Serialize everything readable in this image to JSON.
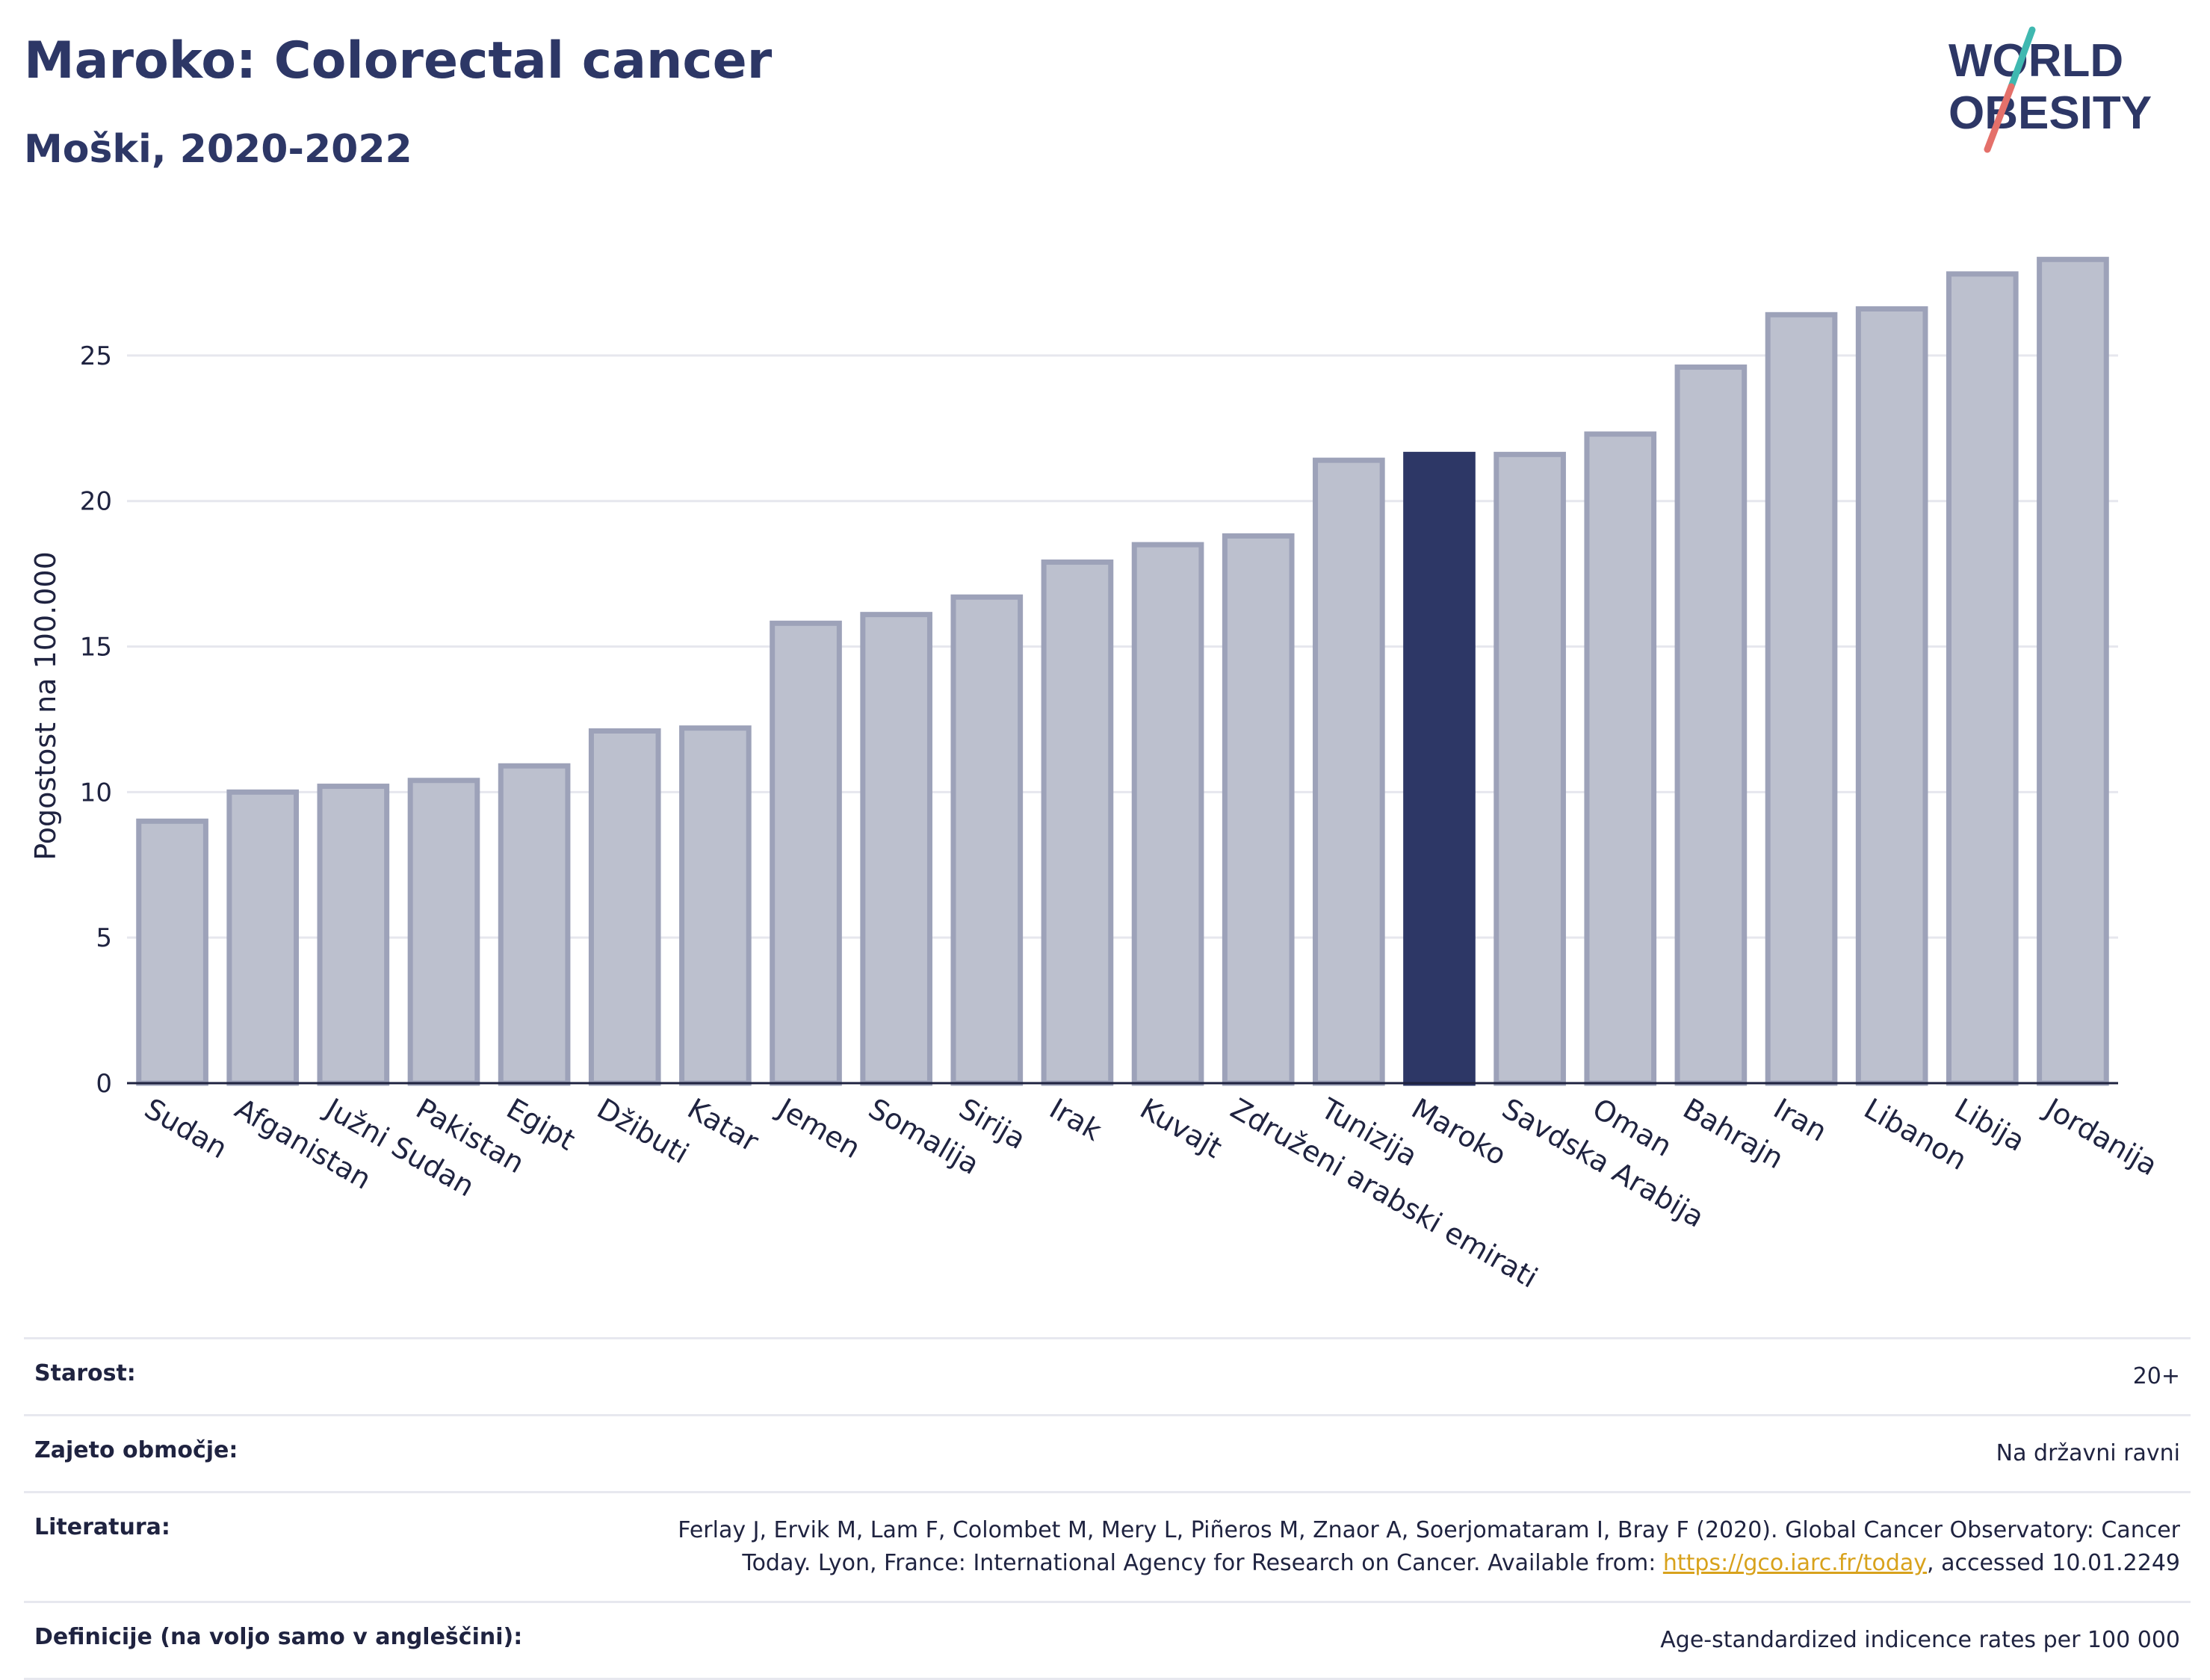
{
  "header": {
    "title": "Maroko: Colorectal cancer",
    "subtitle": "Moški, 2020-2022"
  },
  "logo": {
    "line1": "WORLD",
    "line2": "OBESITY",
    "colors": {
      "text": "#2d3766",
      "slash_teal": "#3fb8b0",
      "slash_red": "#e4706a"
    }
  },
  "chart_data": {
    "type": "bar",
    "ylabel": "Pogostost na 100.000",
    "xlabel": "",
    "ylim": [
      0,
      29
    ],
    "yticks": [
      0,
      5,
      10,
      15,
      20,
      25
    ],
    "grid": true,
    "highlight": "Maroko",
    "colors": {
      "bar": "#bcc0ce",
      "bar_border": "#9da2b9",
      "highlight": "#2d3766",
      "grid": "#e6e7ee"
    },
    "categories": [
      "Sudan",
      "Afganistan",
      "Južni Sudan",
      "Pakistan",
      "Egipt",
      "Džibuti",
      "Katar",
      "Jemen",
      "Somalija",
      "Sirija",
      "Irak",
      "Kuvajt",
      "Združeni arabski emirati",
      "Tunizija",
      "Maroko",
      "Savdska Arabija",
      "Oman",
      "Bahrajn",
      "Iran",
      "Libanon",
      "Libija",
      "Jordanija"
    ],
    "values": [
      9.0,
      10.0,
      10.2,
      10.4,
      10.9,
      12.1,
      12.2,
      15.8,
      16.1,
      16.7,
      17.9,
      18.5,
      18.8,
      21.4,
      21.6,
      21.6,
      22.3,
      24.6,
      26.4,
      26.6,
      27.8,
      28.3
    ]
  },
  "meta": {
    "rows": [
      {
        "label": "Starost:",
        "value": "20+"
      },
      {
        "label": "Zajeto območje:",
        "value": "Na državni ravni"
      },
      {
        "label": "Literatura:",
        "value_pre": "Ferlay J, Ervik M, Lam F, Colombet M, Mery L, Piñeros M, Znaor A, Soerjomataram I, Bray F (2020). Global Cancer Observatory: Cancer Today. Lyon, France: International Agency for Research on Cancer. Available from: ",
        "link": "https://gco.iarc.fr/today",
        "value_post": ", accessed 10.01.2249"
      },
      {
        "label": "Definicije (na voljo samo v angleščini):",
        "value": "Age-standardized indicence rates per 100 000"
      }
    ]
  }
}
